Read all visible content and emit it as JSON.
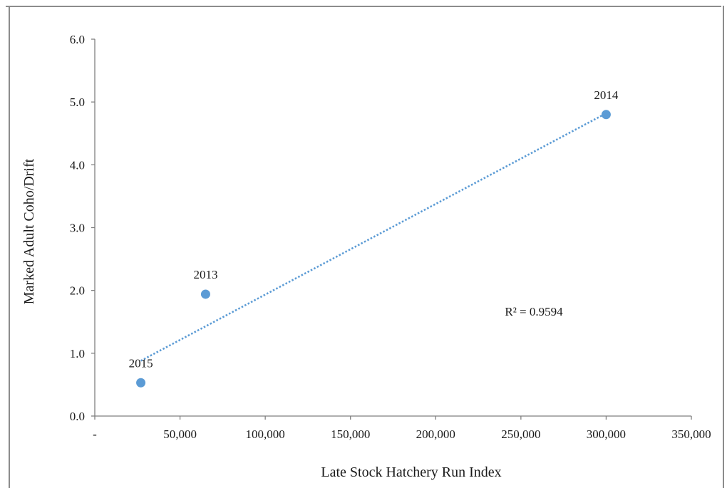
{
  "chart_data": {
    "type": "scatter",
    "title": "",
    "xlabel": "Late Stock Hatchery Run Index",
    "ylabel": "Marked Adult Coho/Drift",
    "xlim": [
      0,
      350000
    ],
    "ylim": [
      0,
      6
    ],
    "x_ticks": [
      0,
      50000,
      100000,
      150000,
      200000,
      250000,
      300000,
      350000
    ],
    "x_tick_labels": [
      "-",
      "50,000",
      "100,000",
      "150,000",
      "200,000",
      "250,000",
      "300,000",
      "350,000"
    ],
    "y_ticks": [
      0,
      1,
      2,
      3,
      4,
      5,
      6
    ],
    "y_tick_labels": [
      "0.0",
      "1.0",
      "2.0",
      "3.0",
      "4.0",
      "5.0",
      "6.0"
    ],
    "grid": false,
    "legend": "none",
    "points": [
      {
        "label": "2013",
        "x": 65000,
        "y": 1.94
      },
      {
        "label": "2014",
        "x": 300000,
        "y": 4.8
      },
      {
        "label": "2015",
        "x": 27000,
        "y": 0.53
      }
    ],
    "trendline": {
      "style": "dotted",
      "x": [
        27000,
        300000
      ],
      "y": [
        0.88,
        4.82
      ]
    },
    "annotation": "R² = 0.9594",
    "colors": {
      "marker": "#5b9bd5",
      "trendline": "#5b9bd5",
      "axis": "#7f7f7f"
    }
  }
}
